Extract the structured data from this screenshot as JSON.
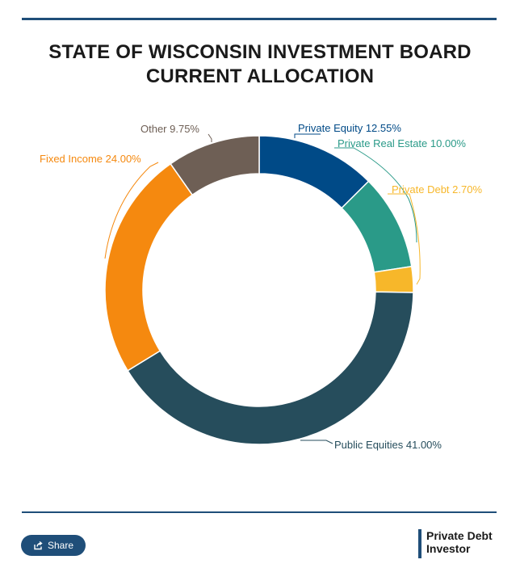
{
  "title_lines": [
    "STATE OF WISCONSIN INVESTMENT BOARD",
    "CURRENT ALLOCATION"
  ],
  "chart_data": {
    "type": "pie",
    "title": "STATE OF WISCONSIN INVESTMENT BOARD CURRENT ALLOCATION",
    "slices": [
      {
        "label": "Private Equity 12.55%",
        "value": 12.55,
        "color": "#004a87"
      },
      {
        "label": "Private Real Estate 10.00%",
        "value": 10.0,
        "color": "#2a9a88"
      },
      {
        "label": "Private Debt 2.70%",
        "value": 2.7,
        "color": "#f7b72a"
      },
      {
        "label": "Public Equities 41.00%",
        "value": 41.0,
        "color": "#264d5c"
      },
      {
        "label": "Fixed Income 24.00%",
        "value": 24.0,
        "color": "#f5890f"
      },
      {
        "label": "Other 9.75%",
        "value": 9.75,
        "color": "#6e5f55"
      }
    ]
  },
  "footer": {
    "share_label": "Share",
    "share_icon": "share-icon",
    "brand_line1": "Private Debt",
    "brand_line2": "Investor"
  }
}
